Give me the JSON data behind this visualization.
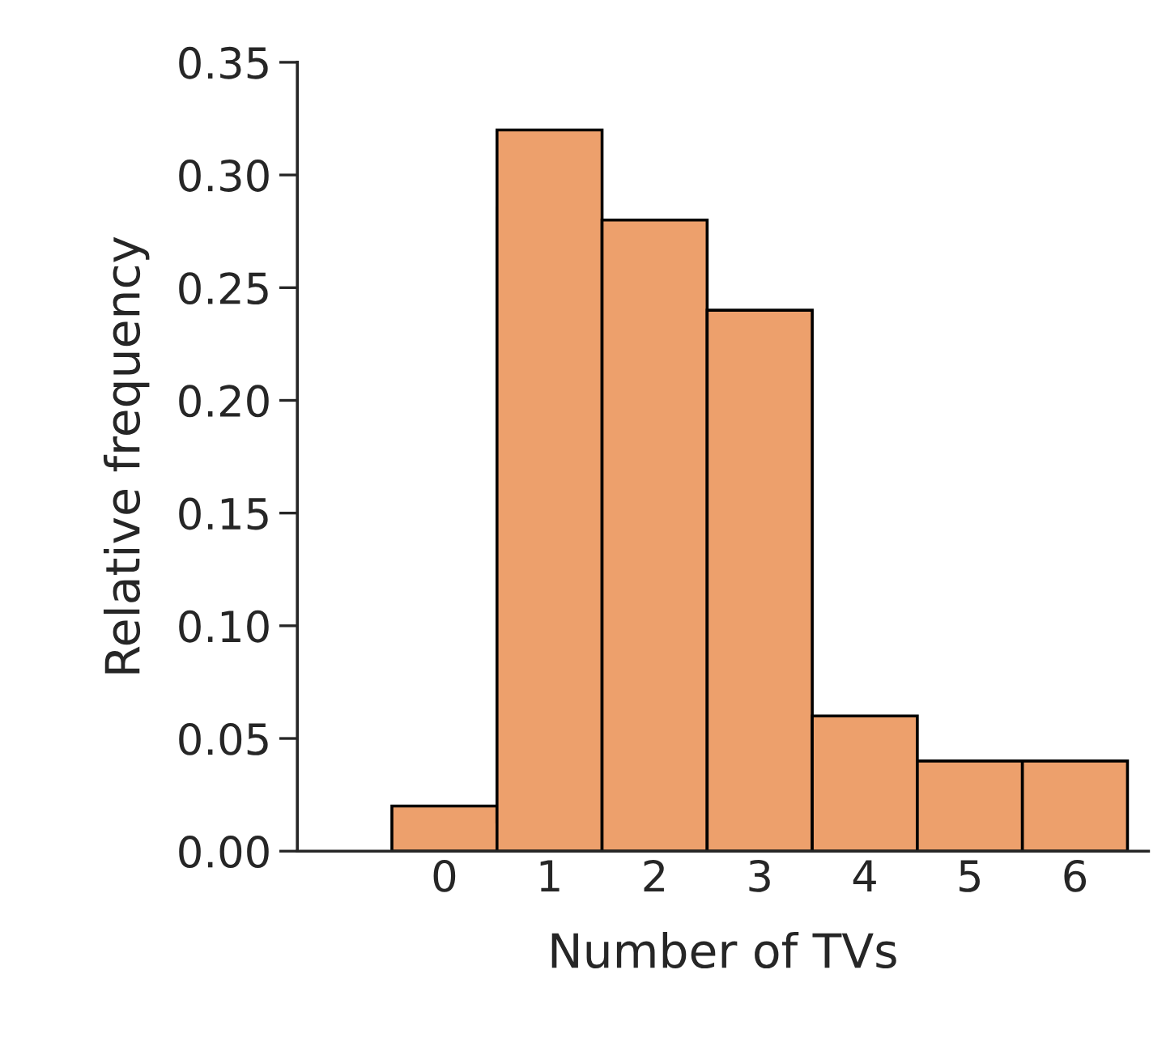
{
  "chart_data": {
    "type": "bar",
    "xlabel": "Number of TVs",
    "ylabel": "Relative frequency",
    "categories": [
      "0",
      "1",
      "2",
      "3",
      "4",
      "5",
      "6"
    ],
    "values": [
      0.02,
      0.32,
      0.28,
      0.24,
      0.06,
      0.04,
      0.04
    ],
    "color": "#eda06c",
    "ylim": [
      0,
      0.35
    ],
    "yticks": [
      {
        "value": 0,
        "label": "0.00"
      },
      {
        "value": 0.05,
        "label": "0.05"
      },
      {
        "value": 0.1,
        "label": "0.10"
      },
      {
        "value": 0.15,
        "label": "0.15"
      },
      {
        "value": 0.2,
        "label": "0.20"
      },
      {
        "value": 0.25,
        "label": "0.25"
      },
      {
        "value": 0.3,
        "label": "0.30"
      },
      {
        "value": 0.35,
        "label": "0.35"
      }
    ],
    "grid": false,
    "legend": false
  }
}
